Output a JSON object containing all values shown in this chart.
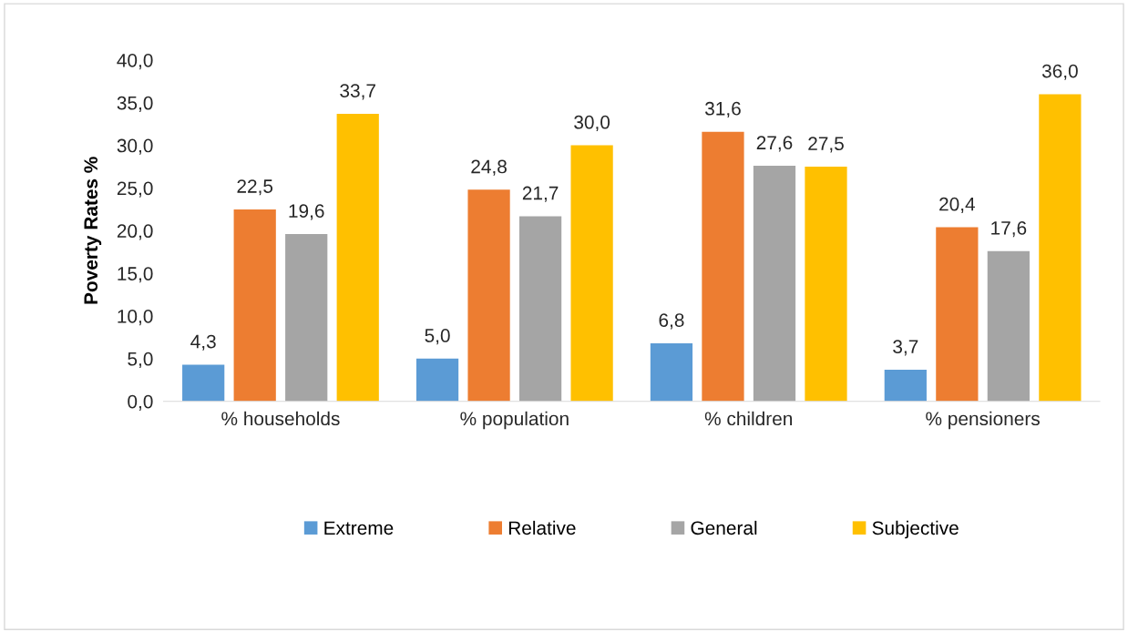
{
  "chart_data": {
    "type": "bar",
    "ylabel": "Poverty Rates %",
    "categories": [
      "% households",
      "% population",
      "% children",
      "% pensioners"
    ],
    "series": [
      {
        "name": "Extreme",
        "color": "#5b9bd5",
        "values": [
          4.3,
          5.0,
          6.8,
          3.7
        ],
        "value_labels": [
          "4,3",
          "5,0",
          "6,8",
          "3,7"
        ]
      },
      {
        "name": "Relative",
        "color": "#ed7d31",
        "values": [
          22.5,
          24.8,
          31.6,
          20.4
        ],
        "value_labels": [
          "22,5",
          "24,8",
          "31,6",
          "20,4"
        ]
      },
      {
        "name": "General",
        "color": "#a5a5a5",
        "values": [
          19.6,
          21.7,
          27.6,
          17.6
        ],
        "value_labels": [
          "19,6",
          "21,7",
          "27,6",
          "17,6"
        ]
      },
      {
        "name": "Subjective",
        "color": "#ffc000",
        "values": [
          33.7,
          30.0,
          27.5,
          36.0
        ],
        "value_labels": [
          "33,7",
          "30,0",
          "27,5",
          "36,0"
        ]
      }
    ],
    "ylim": [
      0,
      40
    ],
    "yticks": [
      {
        "value": 0,
        "label": "0,0"
      },
      {
        "value": 5,
        "label": "5,0"
      },
      {
        "value": 10,
        "label": "10,0"
      },
      {
        "value": 15,
        "label": "15,0"
      },
      {
        "value": 20,
        "label": "20,0"
      },
      {
        "value": 25,
        "label": "25,0"
      },
      {
        "value": 30,
        "label": "30,0"
      },
      {
        "value": 35,
        "label": "35,0"
      },
      {
        "value": 40,
        "label": "40,0"
      }
    ],
    "grid": false,
    "legend": "bottom"
  }
}
